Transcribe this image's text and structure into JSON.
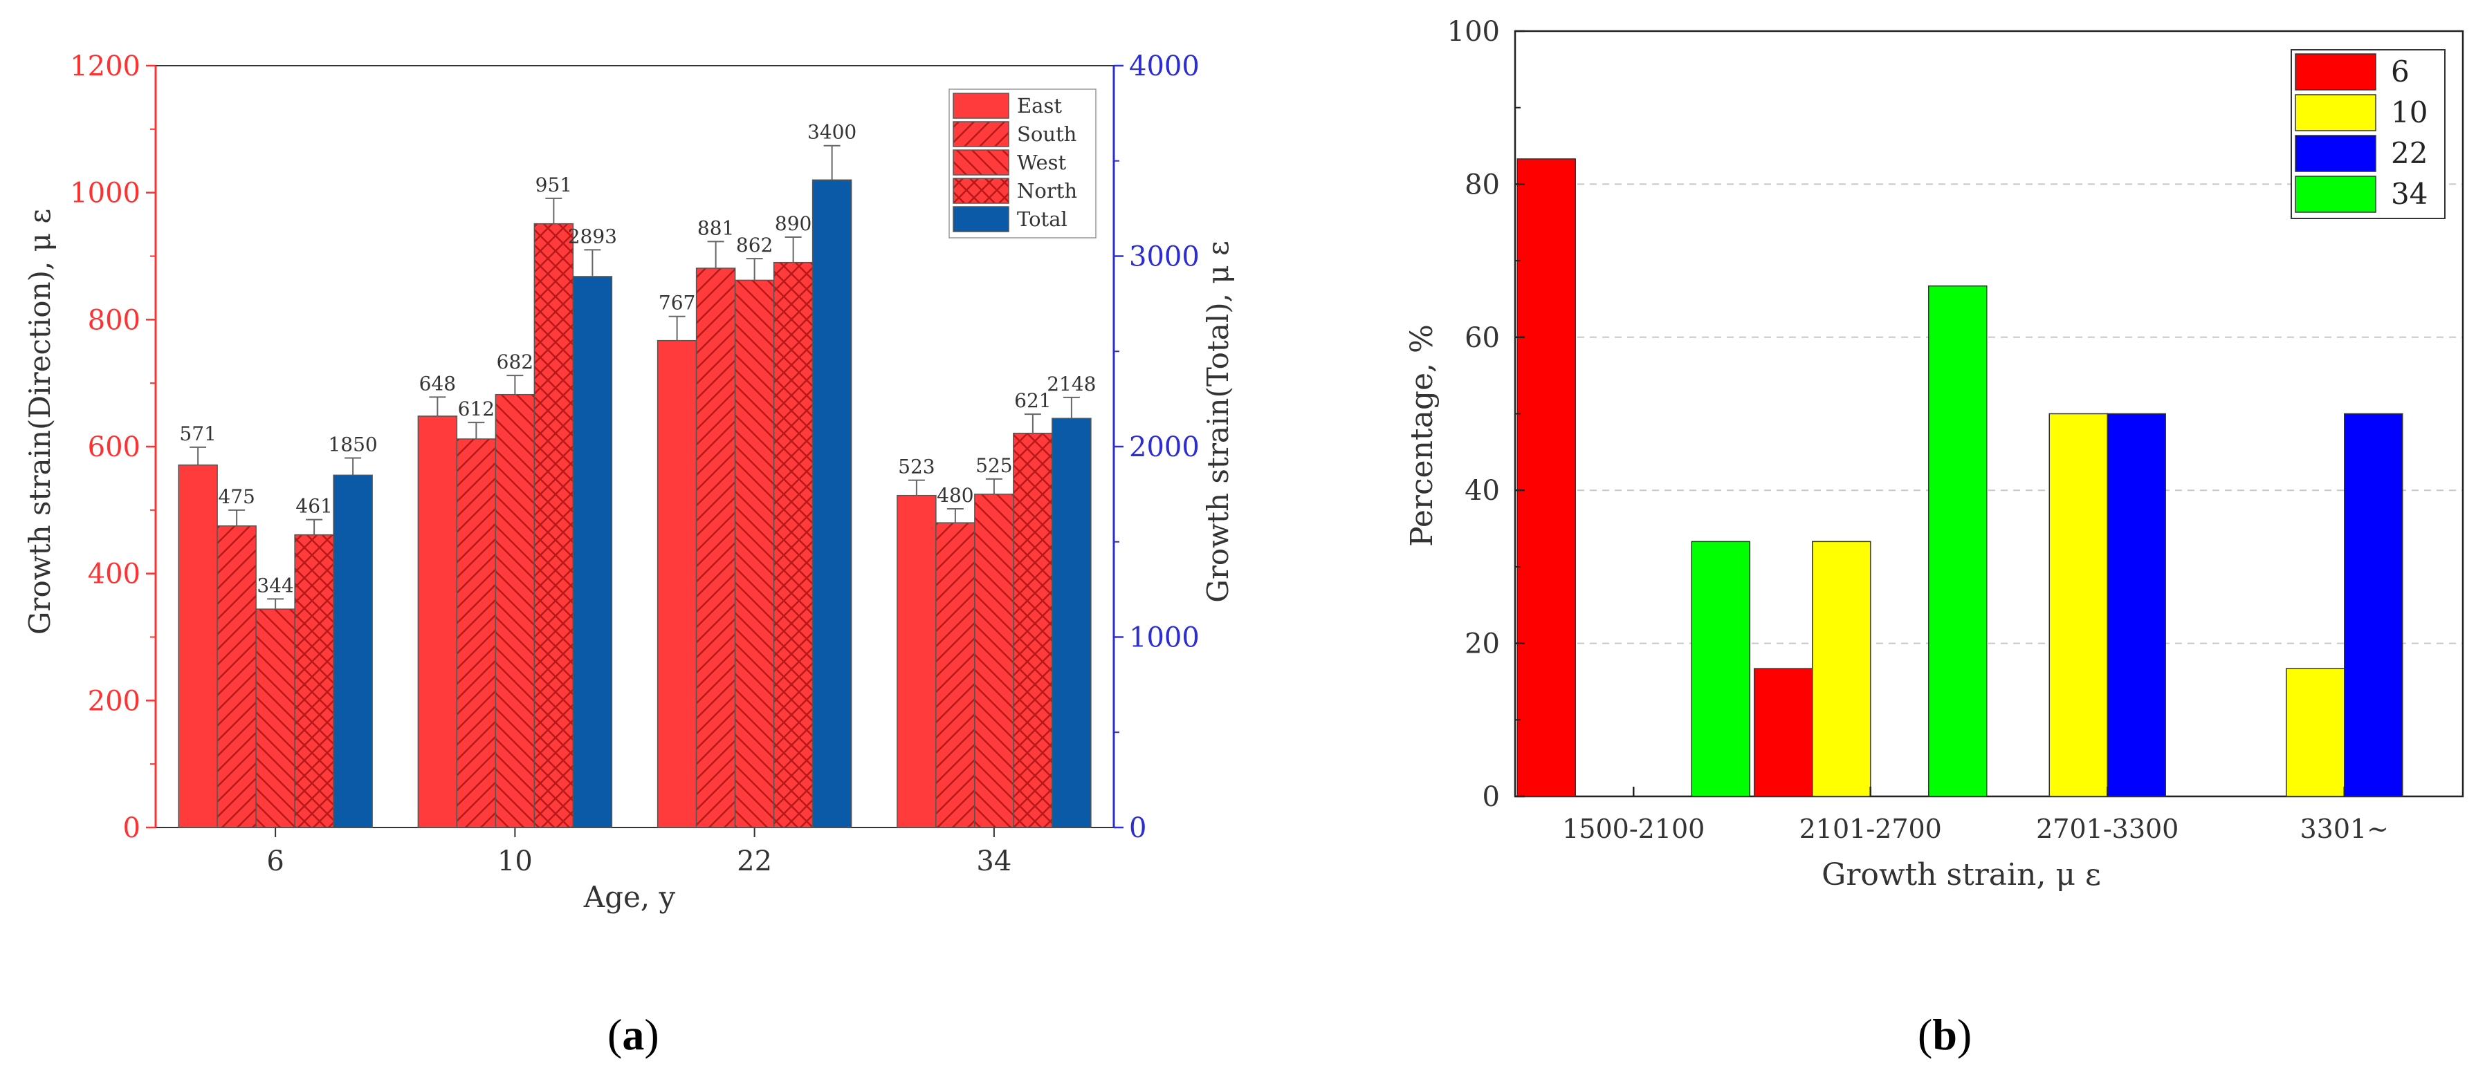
{
  "chart_data": [
    {
      "type": "bar",
      "panel_label": "a",
      "xlabel": "Age, y",
      "ylabel": "Growth strain(Direction), μ ε",
      "ylabel_right": "Growth strain(Total), μ ε",
      "categories": [
        "6",
        "10",
        "22",
        "34"
      ],
      "ylim": [
        0,
        1200
      ],
      "yticks": [
        0,
        200,
        400,
        600,
        800,
        1000,
        1200
      ],
      "ylim_right": [
        0,
        4000
      ],
      "yticks_right": [
        0,
        1000,
        2000,
        3000,
        4000
      ],
      "left_axis_color": "#ff3030",
      "right_axis_color": "#2d2dd4",
      "legend_position": "top-right",
      "error_bars": true,
      "series": [
        {
          "name": "East",
          "axis": "left",
          "color": "#ff3b3b",
          "pattern": "solid",
          "values": [
            571,
            648,
            767,
            523
          ],
          "errors": [
            28,
            30,
            38,
            24
          ]
        },
        {
          "name": "South",
          "axis": "left",
          "color": "#ff3b3b",
          "pattern": "diag-up",
          "values": [
            475,
            612,
            881,
            480
          ],
          "errors": [
            25,
            26,
            42,
            22
          ]
        },
        {
          "name": "West",
          "axis": "left",
          "color": "#ff3b3b",
          "pattern": "diag-down",
          "values": [
            344,
            682,
            862,
            525
          ],
          "errors": [
            16,
            30,
            34,
            24
          ]
        },
        {
          "name": "North",
          "axis": "left",
          "color": "#ff3b3b",
          "pattern": "cross",
          "values": [
            461,
            951,
            890,
            621
          ],
          "errors": [
            24,
            40,
            40,
            30
          ]
        },
        {
          "name": "Total",
          "axis": "right",
          "color": "#0a5aa8",
          "pattern": "solid",
          "values": [
            1850,
            2893,
            3400,
            2148
          ],
          "errors": [
            90,
            140,
            180,
            110
          ]
        }
      ]
    },
    {
      "type": "bar",
      "panel_label": "b",
      "xlabel": "Growth strain, μ ε",
      "ylabel": "Percentage, %",
      "categories": [
        "1500-2100",
        "2101-2700",
        "2701-3300",
        "3301~"
      ],
      "ylim": [
        0,
        100
      ],
      "yticks": [
        0,
        20,
        40,
        60,
        80,
        100
      ],
      "grid": true,
      "legend_position": "top-right",
      "series": [
        {
          "name": "6",
          "color": "#ff0000",
          "values": [
            83.3,
            16.7,
            0,
            0
          ]
        },
        {
          "name": "10",
          "color": "#ffff00",
          "values": [
            0,
            33.3,
            50,
            16.7
          ]
        },
        {
          "name": "22",
          "color": "#0000ff",
          "values": [
            0,
            0,
            50,
            50
          ]
        },
        {
          "name": "34",
          "color": "#00ff00",
          "values": [
            33.3,
            66.7,
            0,
            0
          ]
        }
      ]
    }
  ]
}
